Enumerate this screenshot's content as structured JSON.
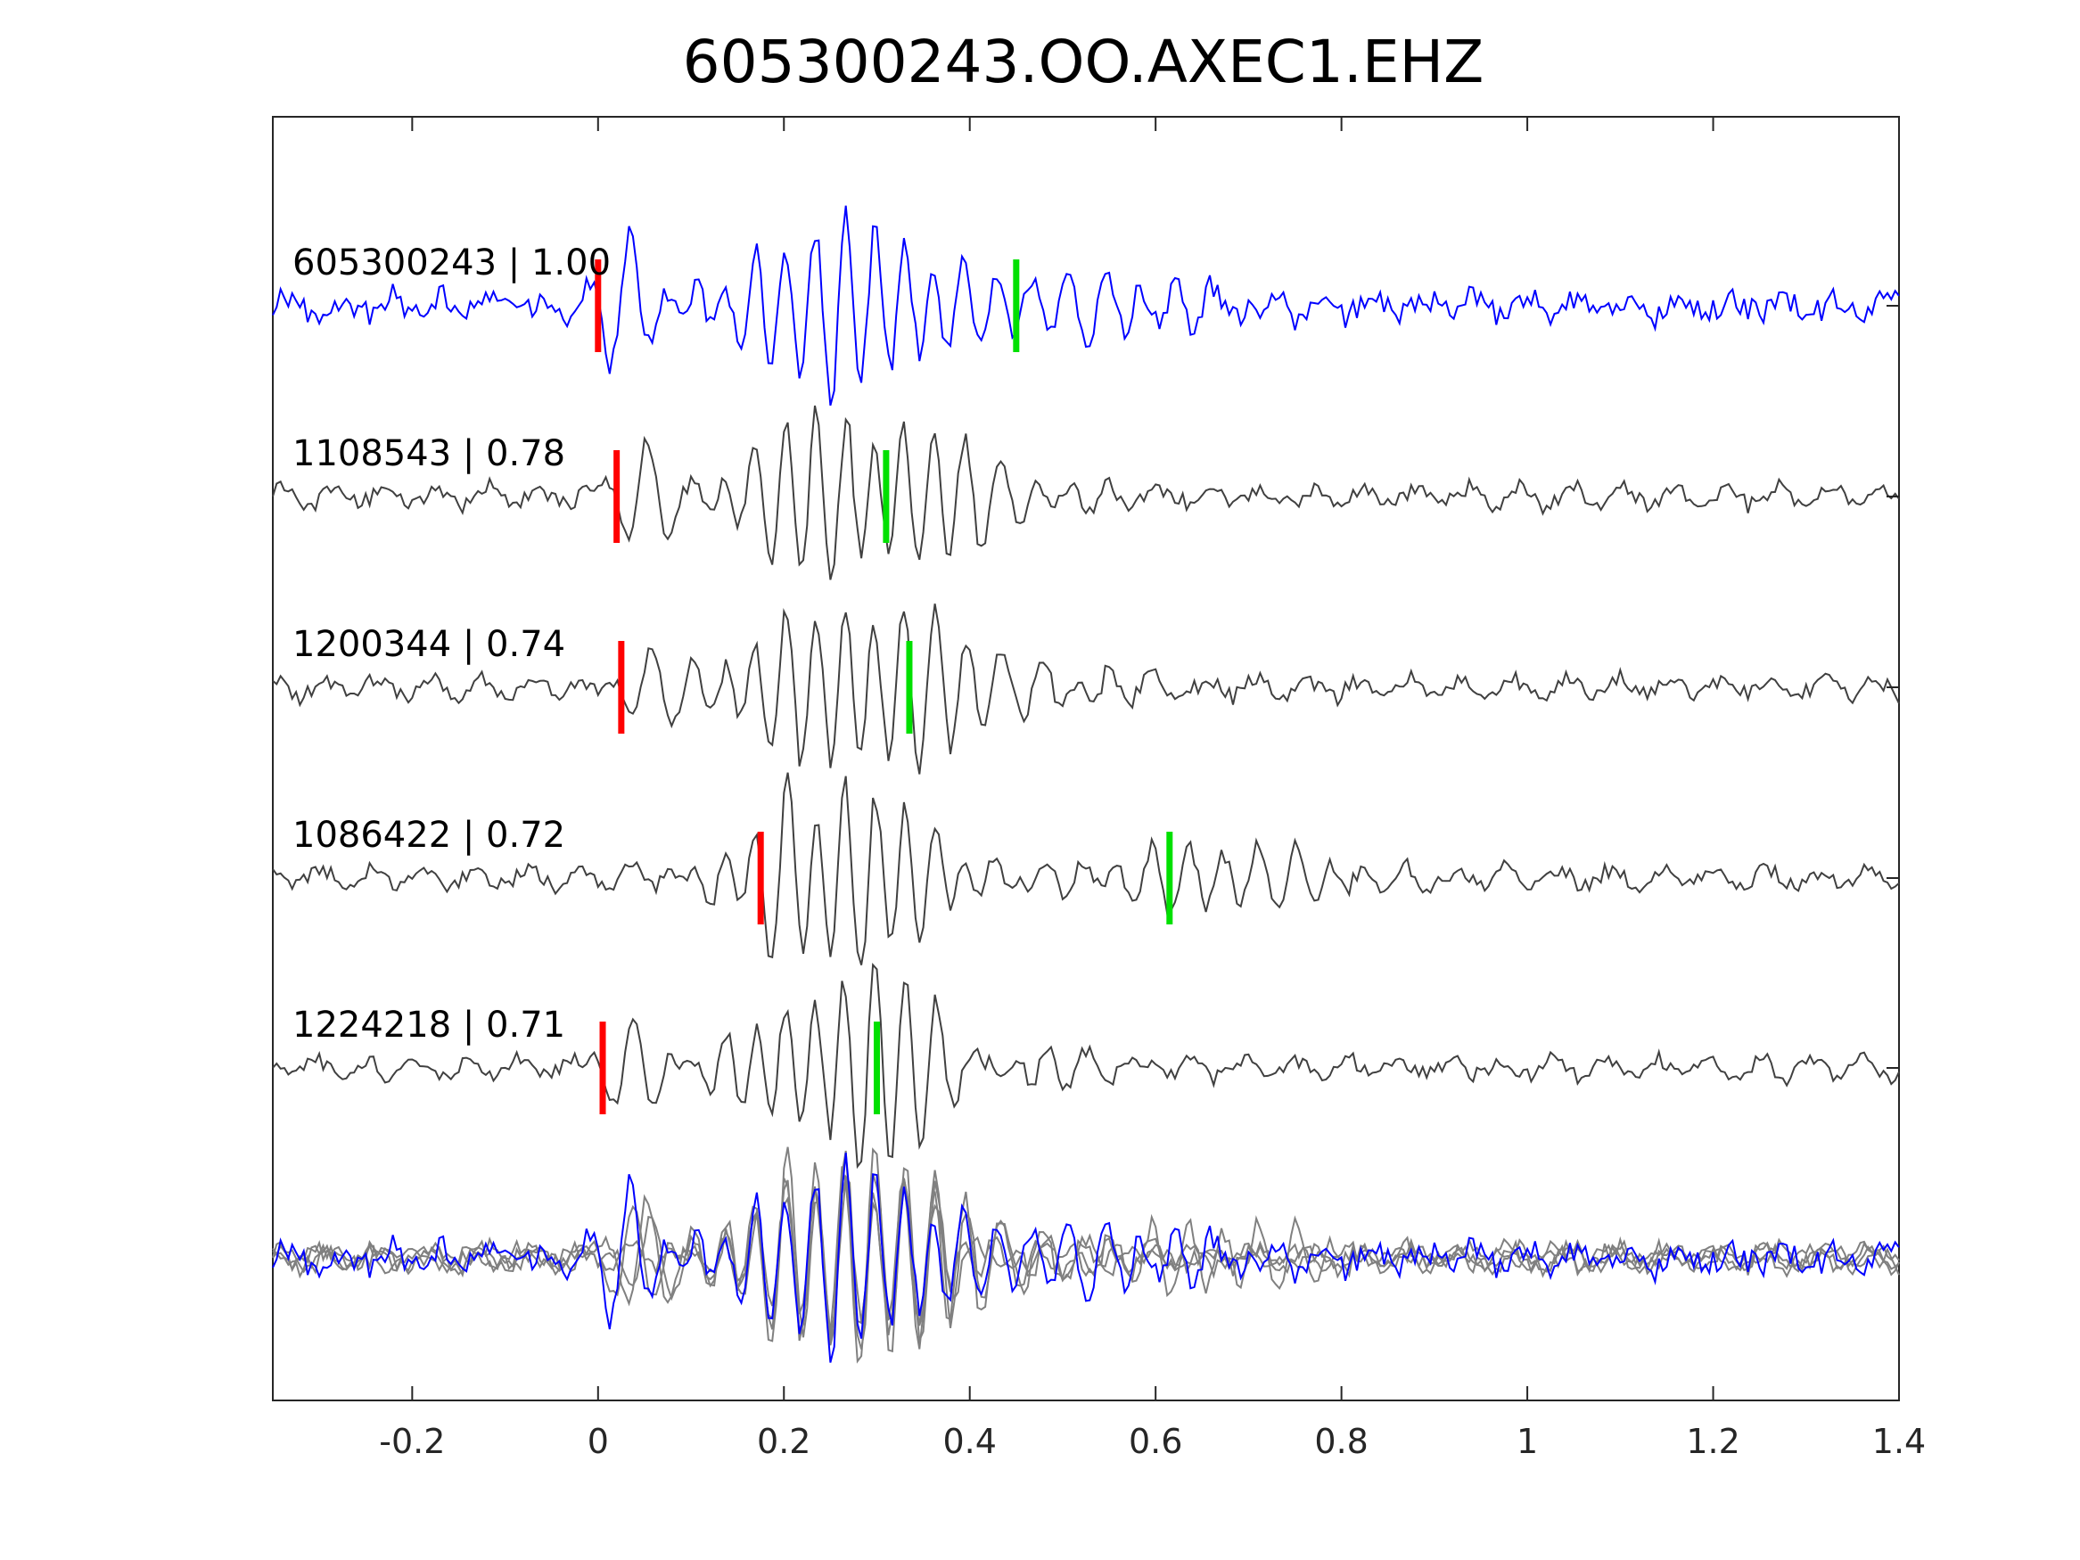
{
  "chart_data": {
    "type": "line",
    "title": "605300243.OO.AXEC1.EHZ",
    "xlabel": "",
    "ylabel": "",
    "xlim": [
      -0.35,
      1.4
    ],
    "x_ticks": [
      -0.2,
      0,
      0.2,
      0.4,
      0.6,
      0.8,
      1,
      1.2,
      1.4
    ],
    "x_tick_labels": [
      "-0.2",
      "0",
      "0.2",
      "0.4",
      "0.6",
      "0.8",
      "1",
      "1.2",
      "1.4"
    ],
    "grid": false,
    "legend": "none",
    "colors": {
      "reference": "#0000ff",
      "trace": "#404040",
      "stack": "#808080",
      "p_pick": "#ff0000",
      "s_pick": "#00e000"
    },
    "series": [
      {
        "name": "605300243",
        "cc": "1.00",
        "label": "605300243 | 1.00",
        "role": "reference",
        "p_pick": 0.0,
        "s_pick": 0.45
      },
      {
        "name": "1108543",
        "cc": "0.78",
        "label": "1108543 | 0.78",
        "role": "trace",
        "p_pick": 0.02,
        "s_pick": 0.31
      },
      {
        "name": "1200344",
        "cc": "0.74",
        "label": "1200344 | 0.74",
        "role": "trace",
        "p_pick": 0.025,
        "s_pick": 0.335
      },
      {
        "name": "1086422",
        "cc": "0.72",
        "label": "1086422 | 0.72",
        "role": "trace",
        "p_pick": 0.175,
        "s_pick": 0.615
      },
      {
        "name": "1224218",
        "cc": "0.71",
        "label": "1224218 | 0.71",
        "role": "trace",
        "p_pick": 0.005,
        "s_pick": 0.3
      }
    ],
    "overlay": {
      "description_visible": false,
      "contains": [
        "605300243",
        "1108543",
        "1200344",
        "1086422",
        "1224218"
      ]
    }
  }
}
